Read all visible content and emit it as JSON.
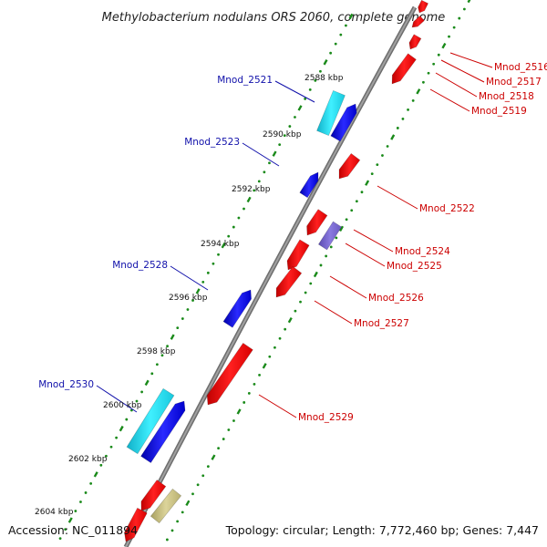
{
  "title": "Methylobacterium nodulans ORS 2060, complete genome",
  "accession": "Accession: NC_011894",
  "summary": "Topology: circular; Length: 7,772,460 bp; Genes: 7,447",
  "colors": {
    "backbone": "#7f7f7f",
    "tick_dot": "#1a8a1a",
    "forward": "#0000ee",
    "forward_alt": "#18d8e8",
    "reverse": "#ee0000",
    "reverse_purple": "#7766cc",
    "reverse_olive": "#c8c080",
    "label_forward": "#1010aa",
    "label_reverse": "#cc0000"
  },
  "kbp_ticks": [
    "2588 kbp",
    "2590 kbp",
    "2592 kbp",
    "2594 kbp",
    "2596 kbp",
    "2598 kbp",
    "2600 kbp",
    "2602 kbp",
    "2604 kbp"
  ],
  "genes_forward": [
    "Mnod_2521",
    "Mnod_2523",
    "Mnod_2528",
    "Mnod_2530"
  ],
  "genes_reverse": [
    "Mnod_2516",
    "Mnod_2517",
    "Mnod_2518",
    "Mnod_2519",
    "Mnod_2522",
    "Mnod_2524",
    "Mnod_2525",
    "Mnod_2526",
    "Mnod_2527",
    "Mnod_2529"
  ]
}
